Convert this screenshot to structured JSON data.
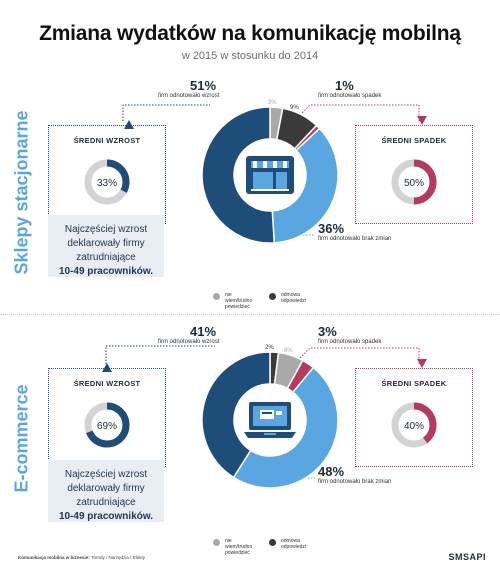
{
  "title": "Zmiana wydatków na komunikację mobilną",
  "subtitle": "w 2015 w stosunku do 2014",
  "colors": {
    "increase": "#1e4d7a",
    "decrease": "#b33b5e",
    "no_change": "#5aa6e0",
    "dont_know": "#a9a9a9",
    "refused": "#3a3a3a",
    "track": "#d3d3d3"
  },
  "sections": [
    {
      "label": "Sklepy stacjonarne",
      "icon": "shop-icon",
      "increase": {
        "pct": "51%",
        "label": "firm odnotowało wzrost"
      },
      "decrease": {
        "pct": "1%",
        "label": "firm odnotowało spadek"
      },
      "no_change": {
        "pct": "36%",
        "label": "firm odnotowało brak zmian"
      },
      "small_labels": {
        "dont_know": "3%",
        "refused": "9%"
      },
      "avg_increase": {
        "title": "ŚREDNI WZROST",
        "value": "33%"
      },
      "avg_decrease": {
        "title": "ŚREDNI SPADEK",
        "value": "50%"
      },
      "note": {
        "line1": "Najczęściej wzrost",
        "line2": "deklarowały firmy",
        "line3": "zatrudniające",
        "bold": "10-49 pracowników."
      },
      "legend": {
        "dont_know": "nie wiem/trudno powiedzieć",
        "refused": "odmowa odpowiedzi"
      }
    },
    {
      "label": "E-commerce",
      "icon": "laptop-icon",
      "increase": {
        "pct": "41%",
        "label": "firm odnotowało wzrost"
      },
      "decrease": {
        "pct": "3%",
        "label": "firm odnotowało spadek"
      },
      "no_change": {
        "pct": "48%",
        "label": "firm odnotowało brak zmian"
      },
      "small_labels": {
        "refused": "2%",
        "dont_know": "6%"
      },
      "avg_increase": {
        "title": "ŚREDNI WZROST",
        "value": "69%"
      },
      "avg_decrease": {
        "title": "ŚREDNI SPADEK",
        "value": "40%"
      },
      "note": {
        "line1": "Najczęściej wzrost",
        "line2": "deklarowały firmy",
        "line3": "zatrudniające",
        "bold": "10-49 pracowników."
      },
      "legend": {
        "dont_know": "nie wiem/trudno powiedzieć",
        "refused": "odmowa odpowiedzi"
      }
    }
  ],
  "footer": {
    "bold": "Komunikacja mobilna w biznesie:",
    "rest": "Trendy / Narzędzia / Efekty"
  },
  "brand": "SMSAPI",
  "chart_data": [
    {
      "type": "pie",
      "title": "Sklepy stacjonarne",
      "slices": [
        {
          "name": "firm odnotowało brak zmian",
          "value": 36
        },
        {
          "name": "firm odnotowało wzrost",
          "value": 51
        },
        {
          "name": "nie wiem/trudno powiedzieć",
          "value": 3
        },
        {
          "name": "odmowa odpowiedzi",
          "value": 9
        },
        {
          "name": "firm odnotowało spadek",
          "value": 1
        }
      ]
    },
    {
      "type": "pie",
      "title": "E-commerce",
      "slices": [
        {
          "name": "firm odnotowało brak zmian",
          "value": 48
        },
        {
          "name": "firm odnotowało wzrost",
          "value": 41
        },
        {
          "name": "odmowa odpowiedzi",
          "value": 2
        },
        {
          "name": "nie wiem/trudno powiedzieć",
          "value": 6
        },
        {
          "name": "firm odnotowało spadek",
          "value": 3
        }
      ]
    },
    {
      "type": "pie",
      "title": "ŚREDNI WZROST",
      "value": 33
    },
    {
      "type": "pie",
      "title": "ŚREDNI SPADEK",
      "value": 50
    },
    {
      "type": "pie",
      "title": "ŚREDNI WZROST",
      "value": 69
    },
    {
      "type": "pie",
      "title": "ŚREDNI SPADEK",
      "value": 40
    }
  ]
}
